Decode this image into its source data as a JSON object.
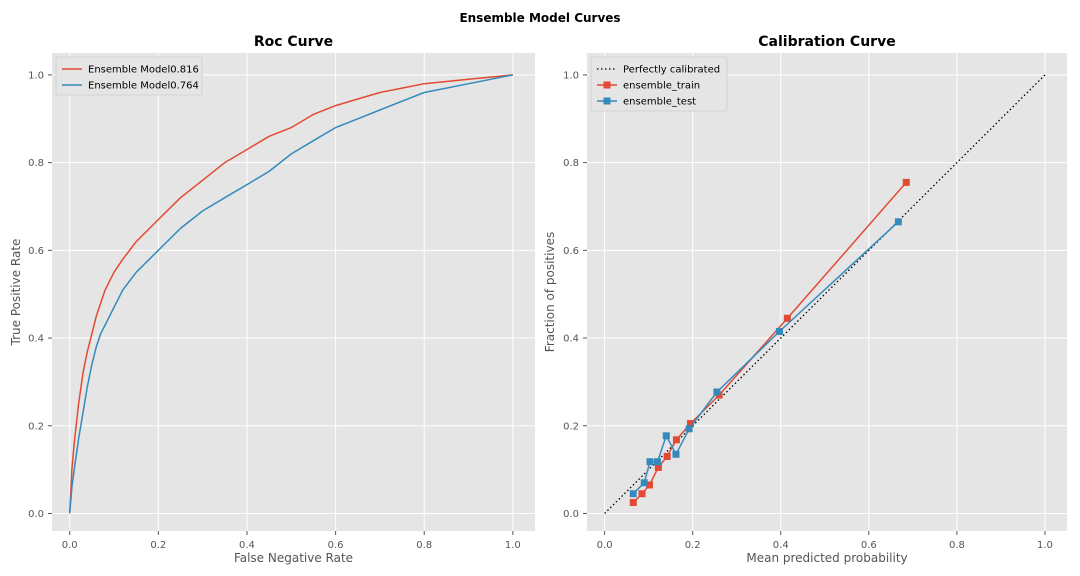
{
  "figure": {
    "suptitle": "Ensemble Model Curves"
  },
  "colors": {
    "red": "#E24A33",
    "blue": "#348ABD",
    "bg": "#E5E5E5",
    "grid": "#FFFFFF",
    "diag": "#000000"
  },
  "chart_data": [
    {
      "type": "line",
      "title": "Roc Curve",
      "xlabel": "False Negative Rate",
      "ylabel": "True Positive Rate",
      "xlim": [
        -0.04,
        1.05
      ],
      "ylim": [
        -0.04,
        1.05
      ],
      "xticks": [
        "0.0",
        "0.2",
        "0.4",
        "0.6",
        "0.8",
        "1.0"
      ],
      "yticks": [
        "0.0",
        "0.2",
        "0.4",
        "0.6",
        "0.8",
        "1.0"
      ],
      "grid": true,
      "legend_position": "top-left",
      "series": [
        {
          "name": "Ensemble Model0.816",
          "color": "#E24A33",
          "x": [
            0.0,
            0.005,
            0.01,
            0.02,
            0.03,
            0.04,
            0.05,
            0.06,
            0.07,
            0.08,
            0.1,
            0.12,
            0.15,
            0.2,
            0.25,
            0.3,
            0.35,
            0.4,
            0.45,
            0.5,
            0.55,
            0.6,
            0.65,
            0.7,
            0.75,
            0.8,
            0.85,
            0.9,
            0.95,
            1.0
          ],
          "y": [
            0.0,
            0.1,
            0.16,
            0.25,
            0.32,
            0.37,
            0.41,
            0.45,
            0.48,
            0.51,
            0.55,
            0.58,
            0.62,
            0.67,
            0.72,
            0.76,
            0.8,
            0.83,
            0.86,
            0.88,
            0.91,
            0.93,
            0.945,
            0.96,
            0.97,
            0.98,
            0.985,
            0.99,
            0.995,
            1.0
          ]
        },
        {
          "name": "Ensemble Model0.764",
          "color": "#348ABD",
          "x": [
            0.0,
            0.005,
            0.01,
            0.02,
            0.03,
            0.04,
            0.05,
            0.06,
            0.07,
            0.08,
            0.1,
            0.12,
            0.15,
            0.2,
            0.25,
            0.3,
            0.35,
            0.4,
            0.45,
            0.5,
            0.55,
            0.6,
            0.65,
            0.7,
            0.75,
            0.8,
            0.85,
            0.9,
            0.95,
            1.0
          ],
          "y": [
            0.0,
            0.06,
            0.1,
            0.17,
            0.23,
            0.29,
            0.34,
            0.38,
            0.41,
            0.43,
            0.47,
            0.51,
            0.55,
            0.6,
            0.65,
            0.69,
            0.72,
            0.75,
            0.78,
            0.82,
            0.85,
            0.88,
            0.9,
            0.92,
            0.94,
            0.96,
            0.97,
            0.98,
            0.99,
            1.0
          ]
        }
      ]
    },
    {
      "type": "line",
      "title": "Calibration Curve",
      "xlabel": "Mean predicted probability",
      "ylabel": "Fraction of positives",
      "xlim": [
        -0.04,
        1.05
      ],
      "ylim": [
        -0.04,
        1.05
      ],
      "xticks": [
        "0.0",
        "0.2",
        "0.4",
        "0.6",
        "0.8",
        "1.0"
      ],
      "yticks": [
        "0.0",
        "0.2",
        "0.4",
        "0.6",
        "0.8",
        "1.0"
      ],
      "grid": true,
      "legend_position": "top-left",
      "series": [
        {
          "name": "Perfectly calibrated",
          "color": "#000000",
          "style": "dotted",
          "x": [
            0.0,
            1.0
          ],
          "y": [
            0.0,
            1.0
          ]
        },
        {
          "name": "ensemble_train",
          "color": "#E24A33",
          "marker": "square",
          "x": [
            0.065,
            0.085,
            0.102,
            0.122,
            0.142,
            0.163,
            0.195,
            0.26,
            0.415,
            0.685
          ],
          "y": [
            0.025,
            0.045,
            0.065,
            0.105,
            0.13,
            0.168,
            0.205,
            0.27,
            0.445,
            0.755
          ]
        },
        {
          "name": "ensemble_test",
          "color": "#348ABD",
          "marker": "square",
          "x": [
            0.065,
            0.09,
            0.103,
            0.12,
            0.14,
            0.162,
            0.192,
            0.255,
            0.397,
            0.667
          ],
          "y": [
            0.045,
            0.07,
            0.118,
            0.118,
            0.177,
            0.135,
            0.193,
            0.277,
            0.415,
            0.665
          ]
        }
      ]
    }
  ]
}
